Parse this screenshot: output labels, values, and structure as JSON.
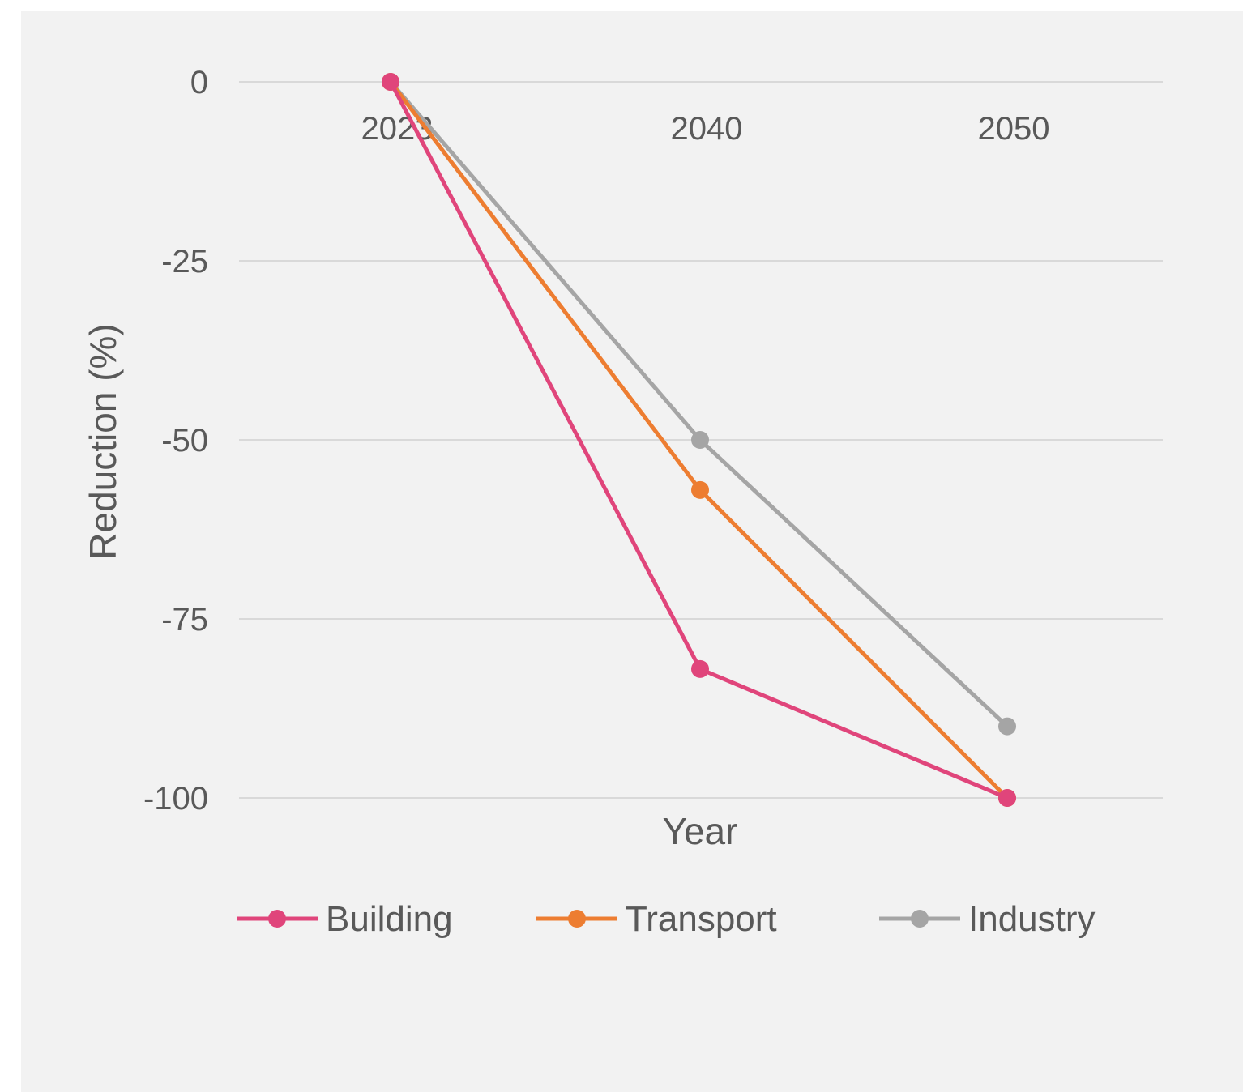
{
  "chart_data": {
    "type": "line",
    "title": "",
    "xlabel": "Year",
    "ylabel": "Reduction (%)",
    "categories": [
      "2023",
      "2040",
      "2050"
    ],
    "ylim": [
      -100,
      0
    ],
    "yticks": [
      "0",
      "-25",
      "-50",
      "-75",
      "-100"
    ],
    "grid": true,
    "legend_position": "bottom",
    "series": [
      {
        "name": "Building",
        "color": "#e0457b",
        "values": [
          0,
          -82,
          -100
        ]
      },
      {
        "name": "Transport",
        "color": "#ed7d31",
        "values": [
          0,
          -57,
          -100
        ]
      },
      {
        "name": "Industry",
        "color": "#a5a5a5",
        "values": [
          0,
          -50,
          -90
        ]
      }
    ]
  }
}
